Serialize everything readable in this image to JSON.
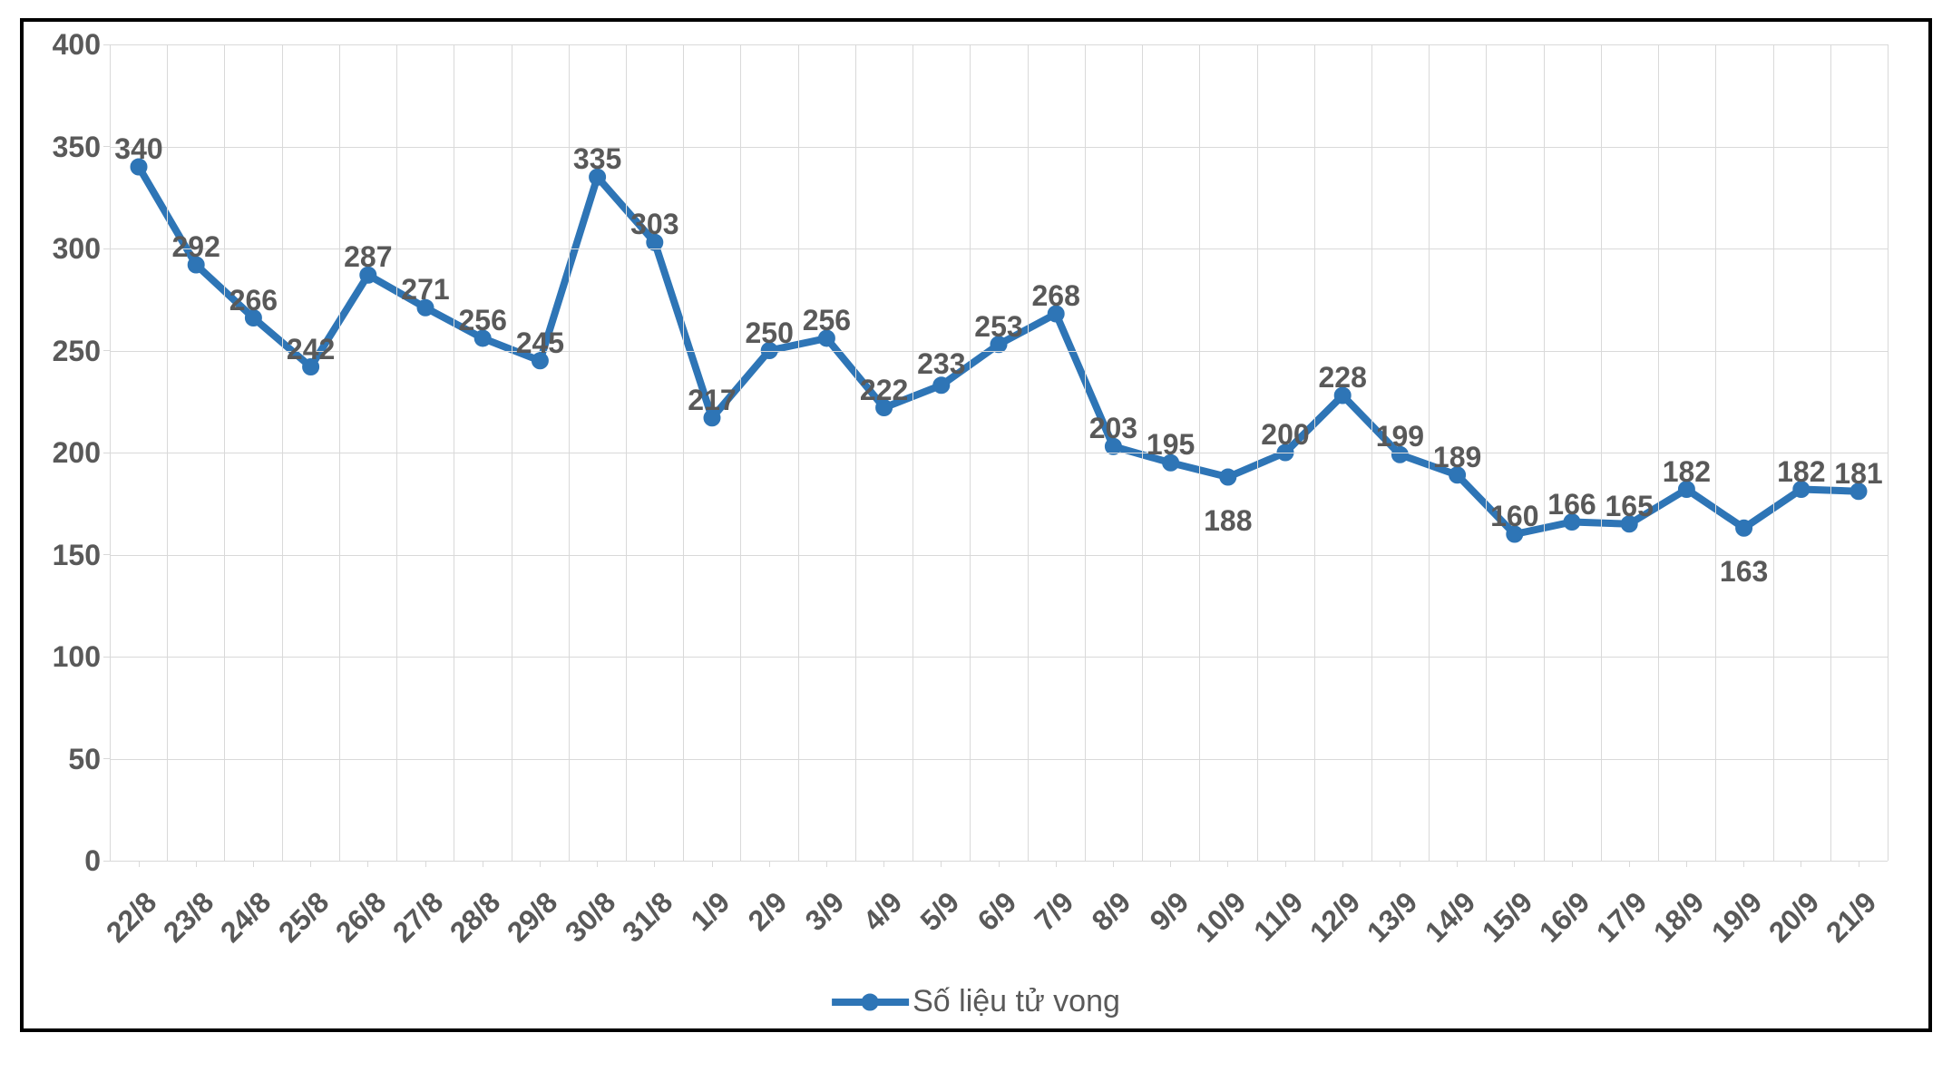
{
  "chart": {
    "type": "line",
    "legend_label": "Số liệu tử vong",
    "line_color": "#2e75b6",
    "marker_color": "#2e75b6",
    "marker_fill": "#2e75b6",
    "label_color": "#595959",
    "grid_color": "#d9d9d9",
    "background_color": "#ffffff",
    "border_color": "#000000",
    "line_width": 8,
    "marker_radius": 8,
    "marker_stroke_width": 3,
    "label_fontsize": 32,
    "axis_label_fontsize": 32,
    "legend_fontsize": 34,
    "ylim": [
      0,
      400
    ],
    "ytick_step": 50,
    "y_ticks": [
      0,
      50,
      100,
      150,
      200,
      250,
      300,
      350,
      400
    ],
    "categories": [
      "22/8",
      "23/8",
      "24/8",
      "25/8",
      "26/8",
      "27/8",
      "28/8",
      "29/8",
      "30/8",
      "31/8",
      "1/9",
      "2/9",
      "3/9",
      "4/9",
      "5/9",
      "6/9",
      "7/9",
      "8/9",
      "9/9",
      "10/9",
      "11/9",
      "12/9",
      "13/9",
      "14/9",
      "15/9",
      "16/9",
      "17/9",
      "18/9",
      "19/9",
      "20/9",
      "21/9"
    ],
    "values": [
      340,
      292,
      266,
      242,
      287,
      271,
      256,
      245,
      335,
      303,
      217,
      250,
      256,
      222,
      233,
      253,
      268,
      203,
      195,
      188,
      200,
      228,
      199,
      189,
      160,
      166,
      165,
      182,
      163,
      182,
      181
    ],
    "data_label_y_offsets": [
      -38,
      -38,
      -38,
      -38,
      -38,
      -38,
      -38,
      -38,
      -38,
      -38,
      -38,
      -38,
      -38,
      -38,
      -42,
      -38,
      -38,
      -38,
      -38,
      30,
      -38,
      -38,
      -38,
      -38,
      -38,
      -38,
      -38,
      -38,
      30,
      -38,
      -38
    ]
  }
}
